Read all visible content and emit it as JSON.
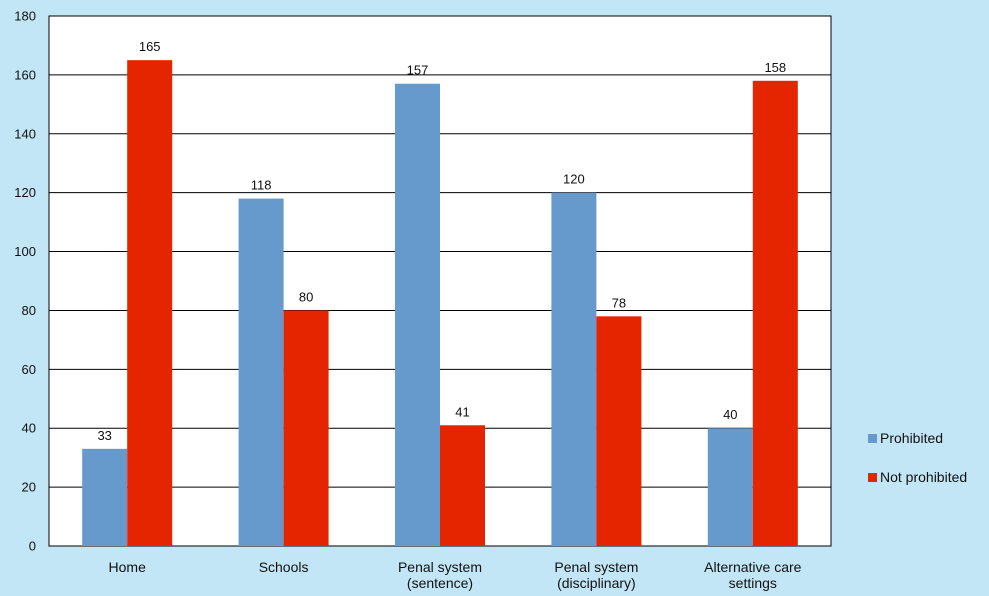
{
  "chart_data": {
    "type": "bar",
    "categories": [
      [
        "Home"
      ],
      [
        "Schools"
      ],
      [
        "Penal system",
        "(sentence)"
      ],
      [
        "Penal system",
        "(disciplinary)"
      ],
      [
        "Alternative care",
        "settings"
      ]
    ],
    "series": [
      {
        "name": "Prohibited",
        "color": "#6699cc",
        "values": [
          33,
          118,
          157,
          120,
          40
        ]
      },
      {
        "name": "Not prohibited",
        "color": "#e52400",
        "values": [
          165,
          80,
          41,
          78,
          158
        ]
      }
    ],
    "ylim": [
      0,
      180
    ],
    "yticks": [
      0,
      20,
      40,
      60,
      80,
      100,
      120,
      140,
      160,
      180
    ],
    "grid": true,
    "legend_position": "right"
  }
}
